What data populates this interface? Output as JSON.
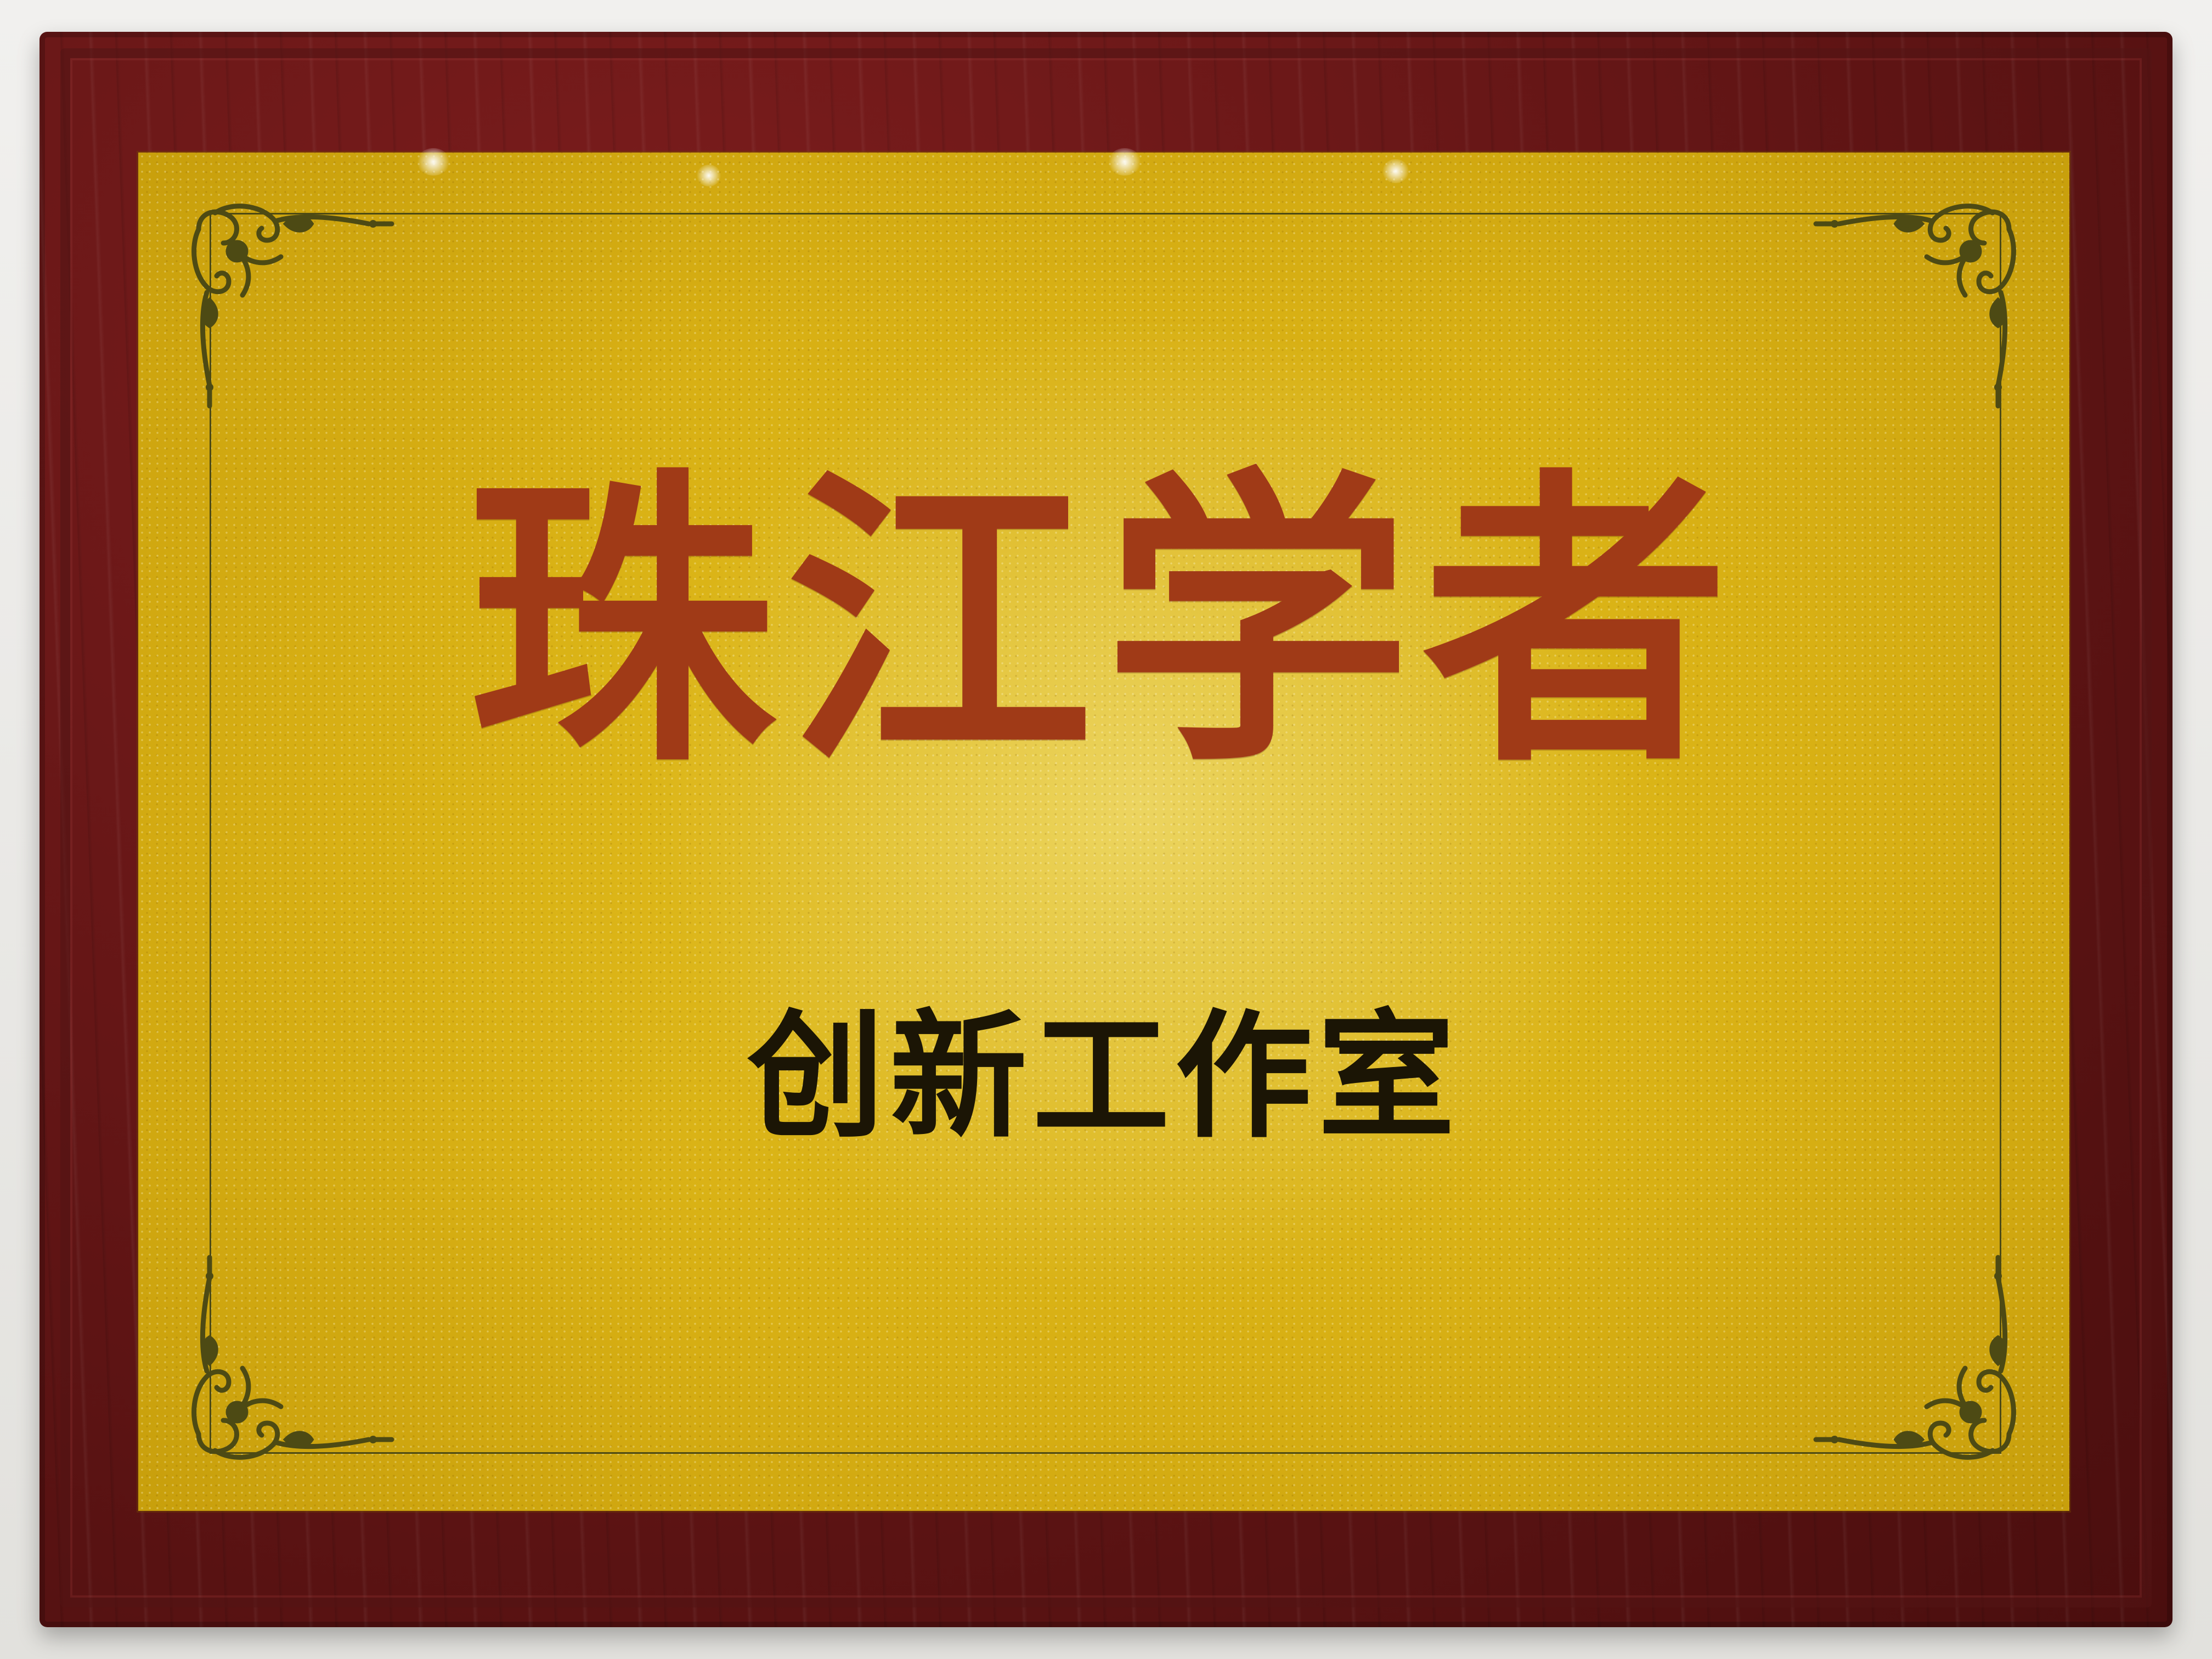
{
  "plaque": {
    "title": "珠江学者",
    "subtitle": "创新工作室"
  },
  "colors": {
    "frame": "#5e1414",
    "plate": "#d8b014",
    "title_text": "#a03a17",
    "subtitle_text": "#1b1505",
    "ornament": "#4d4a14"
  },
  "icons": [
    "scroll-ornament-icon"
  ]
}
